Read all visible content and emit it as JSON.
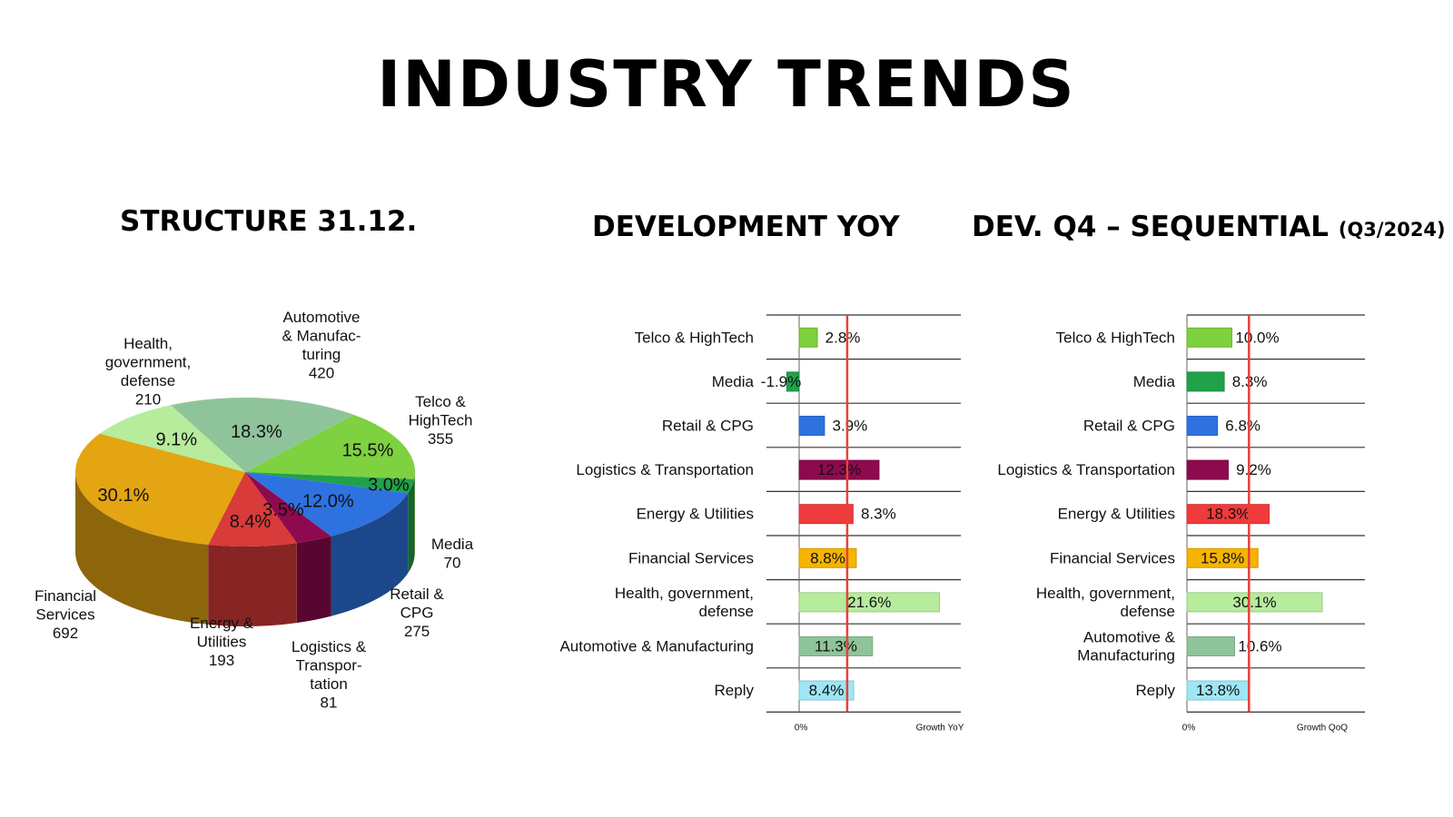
{
  "title": "INDUSTRY TRENDS",
  "sections": {
    "structure": "STRUCTURE 31.12.",
    "yoy": "DEVELOPMENT YOY",
    "qoq_main": "DEV. Q4 – SEQUENTIAL",
    "qoq_sub": "(Q3/2024)"
  },
  "chart_data": [
    {
      "type": "pie",
      "title": "STRUCTURE 31.12.",
      "slices": [
        {
          "name": "Automotive & Manufacturing",
          "label_lines": [
            "Automotive",
            "& Manufac-",
            "turing"
          ],
          "value": 420,
          "percent": "18.3%",
          "color": "#8fc49a"
        },
        {
          "name": "Telco & HighTech",
          "label_lines": [
            "Telco &",
            "HighTech"
          ],
          "value": 355,
          "percent": "15.5%",
          "color": "#7ed13f"
        },
        {
          "name": "Media",
          "label_lines": [
            "Media"
          ],
          "value": 70,
          "percent": "3.0%",
          "color": "#1fa24a"
        },
        {
          "name": "Retail & CPG",
          "label_lines": [
            "Retail &",
            "CPG"
          ],
          "value": 275,
          "percent": "12.0%",
          "color": "#2e72e0"
        },
        {
          "name": "Logistics & Transportation",
          "label_lines": [
            "Logistics &",
            "Transpor-",
            "tation"
          ],
          "value": 81,
          "percent": "3.5%",
          "color": "#8e0a4e"
        },
        {
          "name": "Energy & Utilities",
          "label_lines": [
            "Energy &",
            "Utilities"
          ],
          "value": 193,
          "percent": "8.4%",
          "color": "#d93a3a"
        },
        {
          "name": "Financial Services",
          "label_lines": [
            "Financial",
            "Services"
          ],
          "value": 692,
          "percent": "30.1%",
          "color": "#e3a512"
        },
        {
          "name": "Health, government, defense",
          "label_lines": [
            "Health,",
            "government,",
            "defense"
          ],
          "value": 210,
          "percent": "9.1%",
          "color": "#b6ec9c"
        }
      ]
    },
    {
      "type": "bar",
      "orientation": "horizontal",
      "title": "DEVELOPMENT YOY",
      "xlabel": "Growth YoY",
      "zero_label": "0%",
      "xlim": [
        -2.4,
        29
      ],
      "reference_line": 7.4,
      "categories": [
        {
          "lines": [
            "Telco & HighTech"
          ],
          "value": 2.8,
          "label": "2.8%",
          "color": "#7ed13f"
        },
        {
          "lines": [
            "Media"
          ],
          "value": -1.9,
          "label": "-1.9%",
          "color": "#1fa24a"
        },
        {
          "lines": [
            "Retail & CPG"
          ],
          "value": 3.9,
          "label": "3.9%",
          "color": "#2e72e0"
        },
        {
          "lines": [
            "Logistics & Transportation"
          ],
          "value": 12.3,
          "label": "12.3%",
          "color": "#8e0a4e"
        },
        {
          "lines": [
            "Energy & Utilities"
          ],
          "value": 8.3,
          "label": "8.3%",
          "color": "#ef3b3b"
        },
        {
          "lines": [
            "Financial Services"
          ],
          "value": 8.8,
          "label": "8.8%",
          "color": "#f5b400"
        },
        {
          "lines": [
            "Health, government,",
            "defense"
          ],
          "value": 21.6,
          "label": "21.6%",
          "color": "#b6ec9c"
        },
        {
          "lines": [
            "Automotive & Manufacturing"
          ],
          "value": 11.3,
          "label": "11.3%",
          "color": "#8fc49a"
        },
        {
          "lines": [
            "Reply"
          ],
          "value": 8.4,
          "label": "8.4%",
          "color": "#9ee6f5"
        }
      ]
    },
    {
      "type": "bar",
      "orientation": "horizontal",
      "title": "DEV. Q4 – SEQUENTIAL (Q3/2024)",
      "xlabel": "Growth QoQ",
      "zero_label": "0%",
      "xlim": [
        0,
        40
      ],
      "reference_line": 13.8,
      "categories": [
        {
          "lines": [
            "Telco & HighTech"
          ],
          "value": 10.0,
          "label": "10.0%",
          "color": "#7ed13f"
        },
        {
          "lines": [
            "Media"
          ],
          "value": 8.3,
          "label": "8.3%",
          "color": "#1fa24a"
        },
        {
          "lines": [
            "Retail & CPG"
          ],
          "value": 6.8,
          "label": "6.8%",
          "color": "#2e72e0"
        },
        {
          "lines": [
            "Logistics & Transportation"
          ],
          "value": 9.2,
          "label": "9.2%",
          "color": "#8e0a4e"
        },
        {
          "lines": [
            "Energy & Utilities"
          ],
          "value": 18.3,
          "label": "18.3%",
          "color": "#ef3b3b"
        },
        {
          "lines": [
            "Financial Services"
          ],
          "value": 15.8,
          "label": "15.8%",
          "color": "#f5b400"
        },
        {
          "lines": [
            "Health, government,",
            "defense"
          ],
          "value": 30.1,
          "label": "30.1%",
          "color": "#b6ec9c"
        },
        {
          "lines": [
            "Automotive &",
            "Manufacturing"
          ],
          "value": 10.6,
          "label": "10.6%",
          "color": "#8fc49a"
        },
        {
          "lines": [
            "Reply"
          ],
          "value": 13.8,
          "label": "13.8%",
          "color": "#9ee6f5"
        }
      ]
    }
  ]
}
